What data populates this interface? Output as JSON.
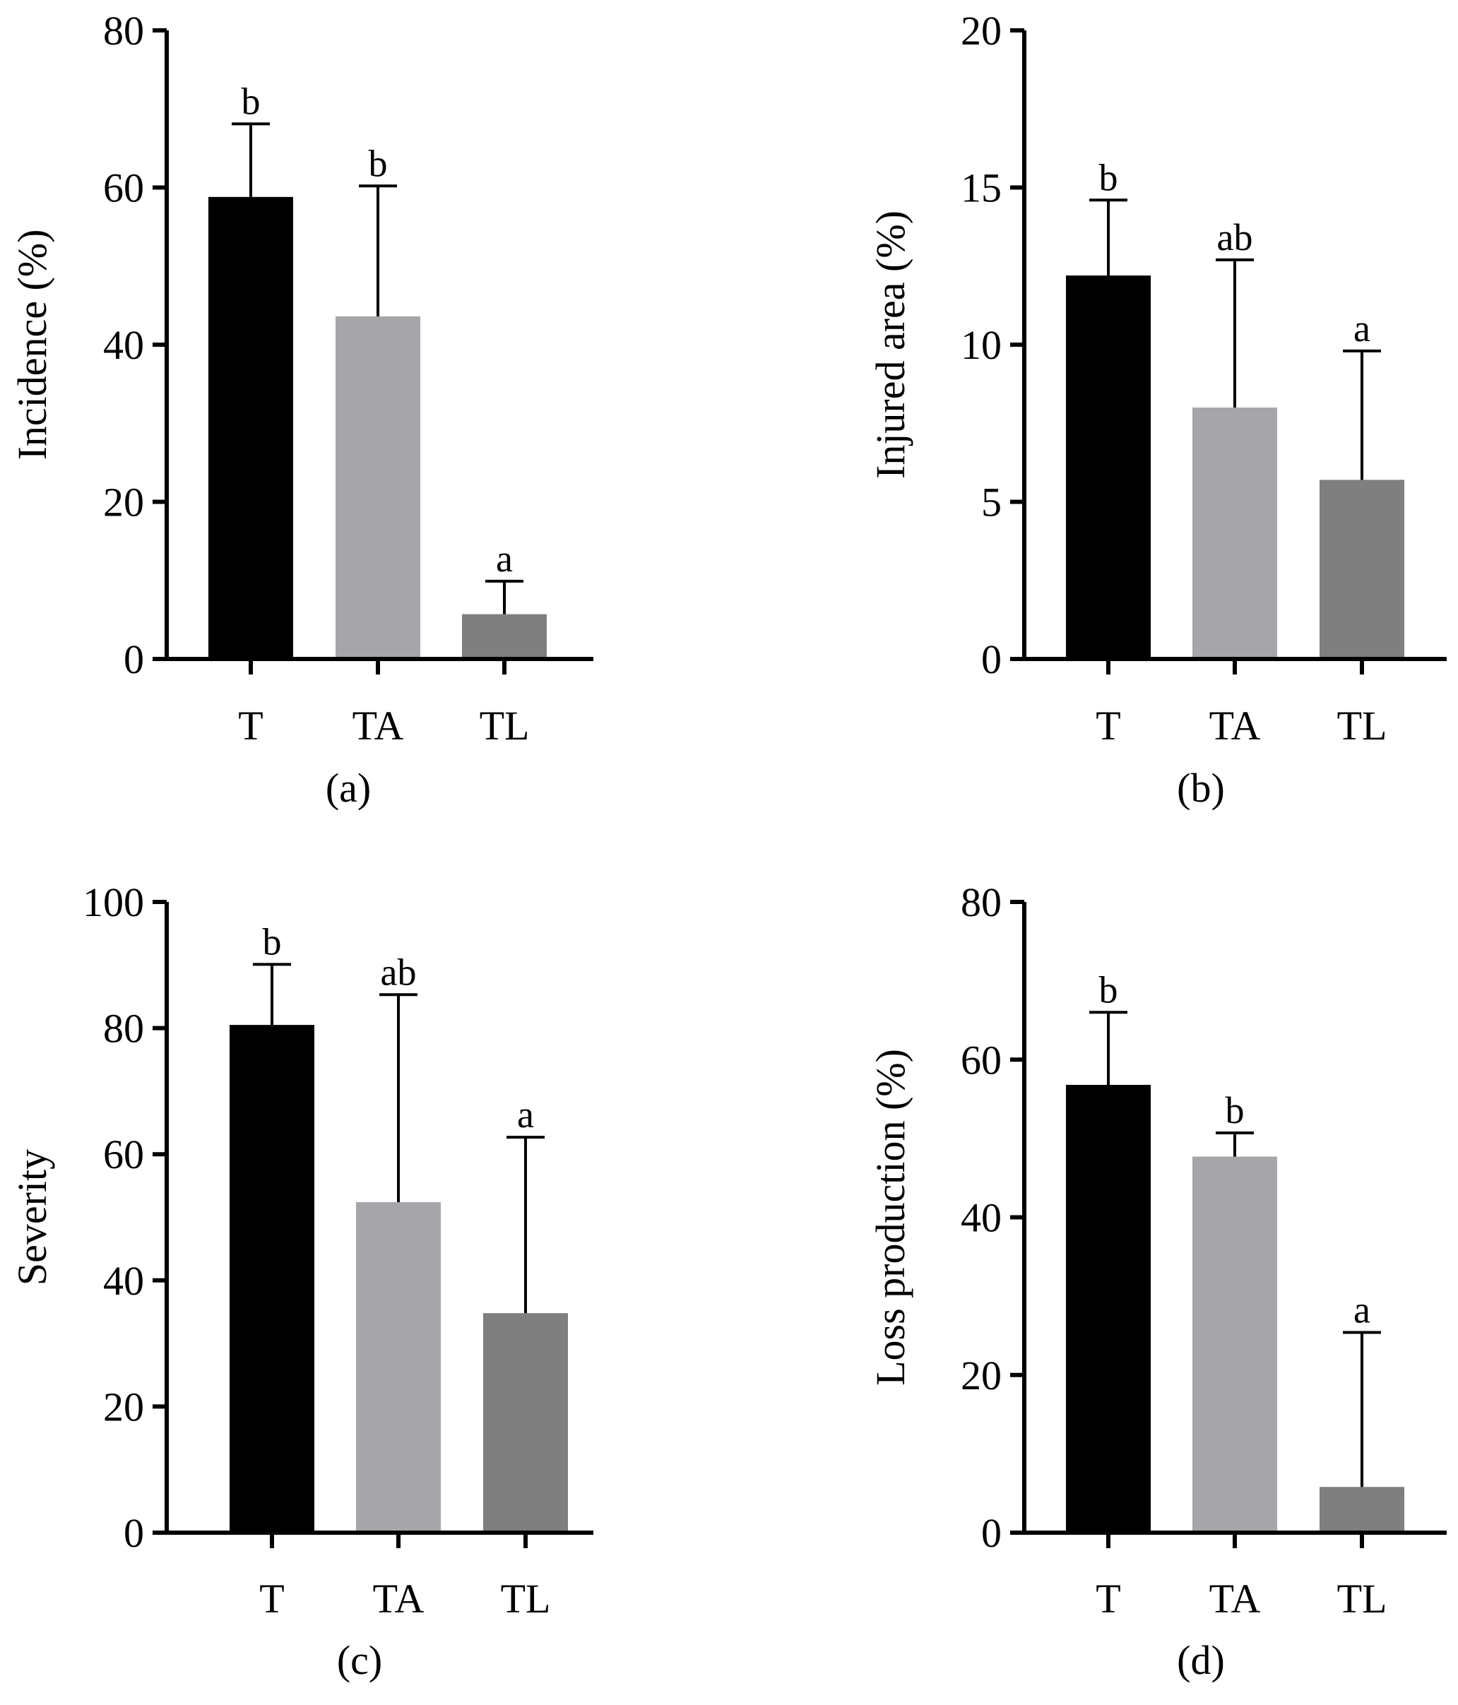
{
  "figure": {
    "background": "#ffffff"
  },
  "chart_data": [
    {
      "type": "bar",
      "panel_label": "(a)",
      "categories": [
        "T",
        "TA",
        "TL"
      ],
      "values": [
        58.8,
        43.6,
        5.7
      ],
      "errors": [
        9.3,
        16.6,
        4.2
      ],
      "significance": [
        "b",
        "b",
        "a"
      ],
      "colors": [
        "#000000",
        "#a6a6aa",
        "#7f7f7f"
      ],
      "ylabel": "Incidence (%)",
      "ylim": [
        0,
        80
      ],
      "yticks": [
        0,
        20,
        40,
        60,
        80
      ]
    },
    {
      "type": "bar",
      "panel_label": "(b)",
      "categories": [
        "T",
        "TA",
        "TL"
      ],
      "values": [
        12.2,
        8.0,
        5.7
      ],
      "errors": [
        2.4,
        4.7,
        4.1
      ],
      "significance": [
        "b",
        "ab",
        "a"
      ],
      "colors": [
        "#000000",
        "#a6a6aa",
        "#7f7f7f"
      ],
      "ylabel": "Injured area (%)",
      "ylim": [
        0,
        20
      ],
      "yticks": [
        0,
        5,
        10,
        15,
        20
      ]
    },
    {
      "type": "bar",
      "panel_label": "(c)",
      "categories": [
        "T",
        "TA",
        "TL"
      ],
      "values": [
        80.5,
        52.4,
        34.8
      ],
      "errors": [
        9.6,
        32.9,
        27.9
      ],
      "significance": [
        "b",
        "ab",
        "a"
      ],
      "colors": [
        "#000000",
        "#a6a6aa",
        "#7f7f7f"
      ],
      "ylabel": "Severity",
      "ylim": [
        0,
        100
      ],
      "yticks": [
        0,
        20,
        40,
        60,
        80,
        100
      ]
    },
    {
      "type": "bar",
      "panel_label": "(d)",
      "categories": [
        "T",
        "TA",
        "TL"
      ],
      "values": [
        56.8,
        47.7,
        5.8
      ],
      "errors": [
        9.2,
        3.0,
        19.6
      ],
      "significance": [
        "b",
        "b",
        "a"
      ],
      "colors": [
        "#000000",
        "#a6a6aa",
        "#7f7f7f"
      ],
      "ylabel": "Loss production (%)",
      "ylim": [
        0,
        80
      ],
      "yticks": [
        0,
        20,
        40,
        60,
        80
      ]
    }
  ]
}
